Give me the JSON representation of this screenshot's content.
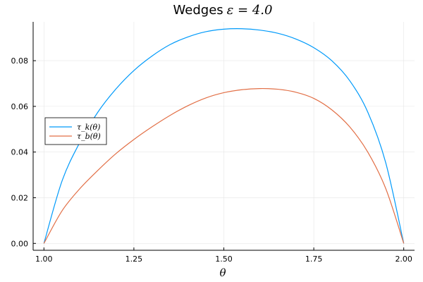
{
  "chart_data": {
    "type": "line",
    "title": "Wedges ε = 4.0",
    "title_prefix": "Wedges",
    "title_math": "ε = 4.0",
    "xlabel": "θ",
    "ylabel": "",
    "xlim": [
      0.97,
      2.03
    ],
    "ylim": [
      -0.003,
      0.097
    ],
    "xticks": [
      1.0,
      1.25,
      1.5,
      1.75,
      2.0
    ],
    "xtick_labels": [
      "1.00",
      "1.25",
      "1.50",
      "1.75",
      "2.00"
    ],
    "yticks": [
      0.0,
      0.02,
      0.04,
      0.06,
      0.08
    ],
    "ytick_labels": [
      "0.00",
      "0.02",
      "0.04",
      "0.06",
      "0.08"
    ],
    "grid": true,
    "legend_position": "left",
    "series": [
      {
        "name": "τ_k(θ)",
        "color": "#009AFA",
        "x": [
          1.0,
          1.05,
          1.1,
          1.15,
          1.2,
          1.25,
          1.3,
          1.35,
          1.4,
          1.45,
          1.5,
          1.55,
          1.6,
          1.65,
          1.7,
          1.75,
          1.8,
          1.85,
          1.9,
          1.95,
          2.0
        ],
        "y": [
          0.0,
          0.0272,
          0.0443,
          0.0575,
          0.0676,
          0.0757,
          0.082,
          0.087,
          0.0904,
          0.0927,
          0.0938,
          0.094,
          0.0934,
          0.092,
          0.0895,
          0.0857,
          0.08,
          0.0712,
          0.0575,
          0.0353,
          0.0
        ]
      },
      {
        "name": "τ_b(θ)",
        "color": "#E26F46",
        "x": [
          1.0,
          1.05,
          1.1,
          1.15,
          1.2,
          1.25,
          1.3,
          1.35,
          1.4,
          1.45,
          1.5,
          1.55,
          1.6,
          1.65,
          1.7,
          1.75,
          1.8,
          1.85,
          1.9,
          1.95,
          2.0
        ],
        "y": [
          0.0,
          0.0142,
          0.024,
          0.032,
          0.0393,
          0.0455,
          0.051,
          0.056,
          0.0603,
          0.0637,
          0.066,
          0.0673,
          0.0678,
          0.0675,
          0.0662,
          0.0635,
          0.0585,
          0.051,
          0.04,
          0.024,
          0.0
        ]
      }
    ]
  }
}
